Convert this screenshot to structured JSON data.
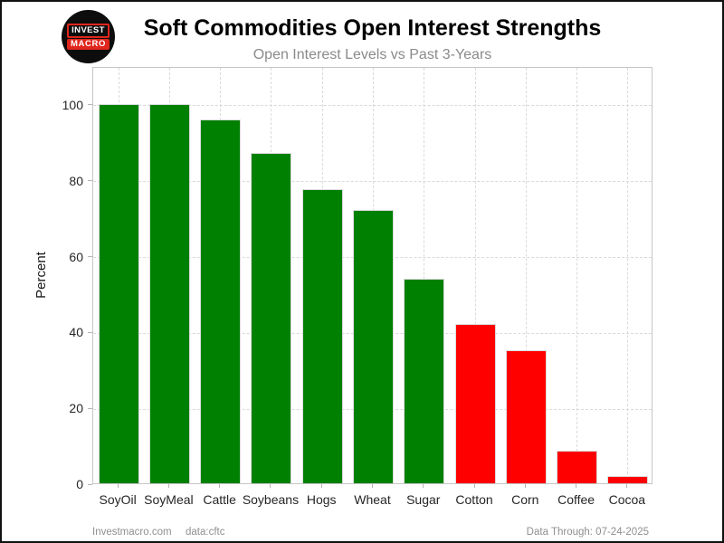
{
  "logo": {
    "line1": "INVEST",
    "line2": "MACRO"
  },
  "footer": {
    "site": "Investmacro.com",
    "source": "data:cftc",
    "data_through": "Data Through: 07-24-2025"
  },
  "chart_data": {
    "type": "bar",
    "title": "Soft Commodities Open Interest Strengths",
    "subtitle": "Open Interest Levels vs Past 3-Years",
    "xlabel": "",
    "ylabel": "Percent",
    "categories": [
      "SoyOil",
      "SoyMeal",
      "Cattle",
      "Soybeans",
      "Hogs",
      "Wheat",
      "Sugar",
      "Cotton",
      "Corn",
      "Coffee",
      "Cocoa"
    ],
    "values": [
      100,
      100,
      96,
      87,
      77.5,
      72,
      54,
      42,
      35,
      8.5,
      2
    ],
    "bar_colors": [
      "#008000",
      "#008000",
      "#008000",
      "#008000",
      "#008000",
      "#008000",
      "#008000",
      "#ff0000",
      "#ff0000",
      "#ff0000",
      "#ff0000"
    ],
    "colors": {
      "strong": "#008000",
      "weak": "#ff0000"
    },
    "yticks": [
      0,
      20,
      40,
      60,
      80,
      100
    ],
    "ylim": [
      0,
      110
    ],
    "grid": true,
    "legend": false
  }
}
